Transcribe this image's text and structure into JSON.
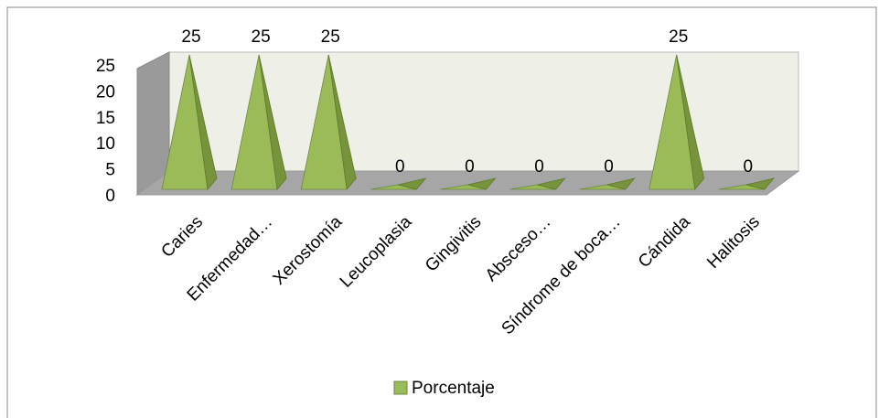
{
  "chart_data": {
    "type": "pyramid",
    "categories": [
      "Caries",
      "Enfermedad…",
      "Xerostomía",
      "Leucoplasia",
      "Gingivitis",
      "Absceso…",
      "Síndrome de boca…",
      "Cándida",
      "Halitosis"
    ],
    "series": [
      {
        "name": "Porcentaje",
        "color": "#9bbb59",
        "values": [
          25,
          25,
          25,
          0,
          0,
          0,
          0,
          25,
          0
        ]
      }
    ],
    "ylim": [
      0,
      25
    ],
    "yticks": [
      0,
      5,
      10,
      15,
      20,
      25
    ],
    "legend": "bottom"
  }
}
